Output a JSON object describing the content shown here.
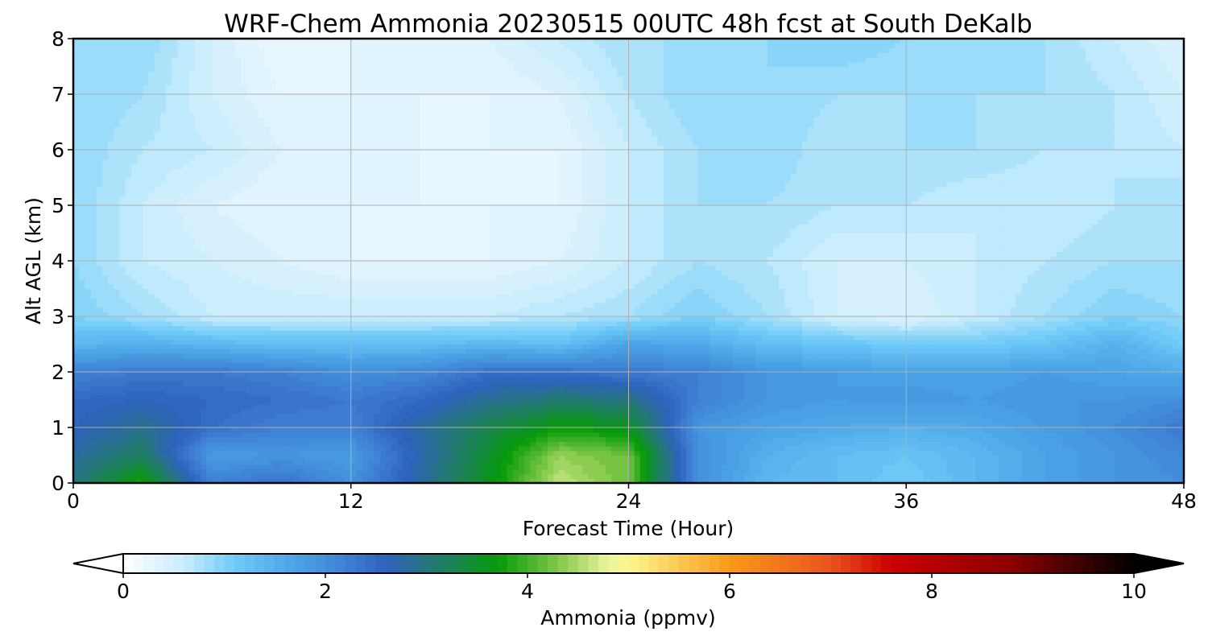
{
  "chart_data": {
    "type": "heatmap",
    "title": "WRF-Chem Ammonia  20230515 00UTC 48h fcst at South DeKalb",
    "xlabel": "Forecast Time (Hour)",
    "ylabel": "Alt AGL (km)",
    "xlim": [
      0,
      48
    ],
    "ylim": [
      0,
      8
    ],
    "x_ticks": [
      0,
      12,
      24,
      36,
      48
    ],
    "y_ticks": [
      0,
      1,
      2,
      3,
      4,
      5,
      6,
      7,
      8
    ],
    "grid": true,
    "colorbar": {
      "label": "Ammonia  (ppmv)",
      "vmin": 0,
      "vmax": 10,
      "ticks": [
        0,
        2,
        4,
        6,
        8,
        10
      ],
      "extend": "both",
      "levels": 100,
      "color_stops": [
        {
          "v": 0.0,
          "c": "#ffffff"
        },
        {
          "v": 0.6,
          "c": "#c8ecfc"
        },
        {
          "v": 1.1,
          "c": "#6ecbf8"
        },
        {
          "v": 1.7,
          "c": "#4aa3e6"
        },
        {
          "v": 2.2,
          "c": "#3f80d3"
        },
        {
          "v": 2.6,
          "c": "#2e62bd"
        },
        {
          "v": 3.1,
          "c": "#237a6e"
        },
        {
          "v": 3.7,
          "c": "#049a08"
        },
        {
          "v": 4.3,
          "c": "#80c848"
        },
        {
          "v": 4.8,
          "c": "#ecf3a0"
        },
        {
          "v": 5.0,
          "c": "#fdf68e"
        },
        {
          "v": 6.0,
          "c": "#f99a1a"
        },
        {
          "v": 7.0,
          "c": "#e9541d"
        },
        {
          "v": 7.6,
          "c": "#cc0000"
        },
        {
          "v": 8.8,
          "c": "#8b0000"
        },
        {
          "v": 10.0,
          "c": "#000000"
        }
      ]
    },
    "grid_x_hours": [
      0,
      3,
      6,
      9,
      12,
      15,
      18,
      21,
      24,
      27,
      30,
      33,
      36,
      39,
      42,
      45,
      48
    ],
    "grid_alt_km": [
      0,
      0.5,
      1,
      1.5,
      2,
      2.5,
      3,
      4,
      5,
      6,
      7,
      8
    ],
    "values_ppmv": [
      [
        3.0,
        3.8,
        2.2,
        2.4,
        2.0,
        2.8,
        3.6,
        4.6,
        4.2,
        2.0,
        1.4,
        1.3,
        1.1,
        1.4,
        1.7,
        1.9,
        2.0
      ],
      [
        2.8,
        3.2,
        1.8,
        1.9,
        1.8,
        2.7,
        3.5,
        4.4,
        4.2,
        2.0,
        1.5,
        1.3,
        1.2,
        1.4,
        1.7,
        1.9,
        2.1
      ],
      [
        2.6,
        2.9,
        2.4,
        2.2,
        2.2,
        2.8,
        3.3,
        3.7,
        3.6,
        1.9,
        1.7,
        1.6,
        1.5,
        1.6,
        1.8,
        2.0,
        2.3
      ],
      [
        2.5,
        2.6,
        2.5,
        2.4,
        2.3,
        2.5,
        2.9,
        3.1,
        3.0,
        2.2,
        1.9,
        1.8,
        1.9,
        1.8,
        1.9,
        1.9,
        2.0
      ],
      [
        2.2,
        2.3,
        2.3,
        2.2,
        2.0,
        2.1,
        2.4,
        2.4,
        2.3,
        2.2,
        1.9,
        1.8,
        1.7,
        1.7,
        1.8,
        1.7,
        1.6
      ],
      [
        1.4,
        1.5,
        1.4,
        1.3,
        1.3,
        1.3,
        1.4,
        1.3,
        1.7,
        1.6,
        1.3,
        1.2,
        1.1,
        1.1,
        1.2,
        1.5,
        1.1
      ],
      [
        1.0,
        0.8,
        0.6,
        0.6,
        0.6,
        0.6,
        0.6,
        0.7,
        0.8,
        1.0,
        0.8,
        0.5,
        0.4,
        0.6,
        0.8,
        1.0,
        0.9
      ],
      [
        0.9,
        0.6,
        0.5,
        0.4,
        0.3,
        0.3,
        0.3,
        0.4,
        0.6,
        0.8,
        0.7,
        0.5,
        0.5,
        0.6,
        0.7,
        0.8,
        0.8
      ],
      [
        0.9,
        0.6,
        0.4,
        0.3,
        0.3,
        0.3,
        0.3,
        0.3,
        0.6,
        0.8,
        0.8,
        0.7,
        0.7,
        0.6,
        0.6,
        0.7,
        0.8
      ],
      [
        0.9,
        0.7,
        0.6,
        0.4,
        0.4,
        0.3,
        0.3,
        0.3,
        0.6,
        0.8,
        0.9,
        0.7,
        0.8,
        0.8,
        0.7,
        0.7,
        0.6
      ],
      [
        0.9,
        0.8,
        0.5,
        0.3,
        0.3,
        0.3,
        0.3,
        0.4,
        0.7,
        0.9,
        0.9,
        0.8,
        0.8,
        0.8,
        0.8,
        0.7,
        0.5
      ],
      [
        0.9,
        0.9,
        0.5,
        0.2,
        0.3,
        0.4,
        0.4,
        0.6,
        0.8,
        0.8,
        0.9,
        1.0,
        0.9,
        0.9,
        0.8,
        0.6,
        0.4
      ]
    ]
  }
}
